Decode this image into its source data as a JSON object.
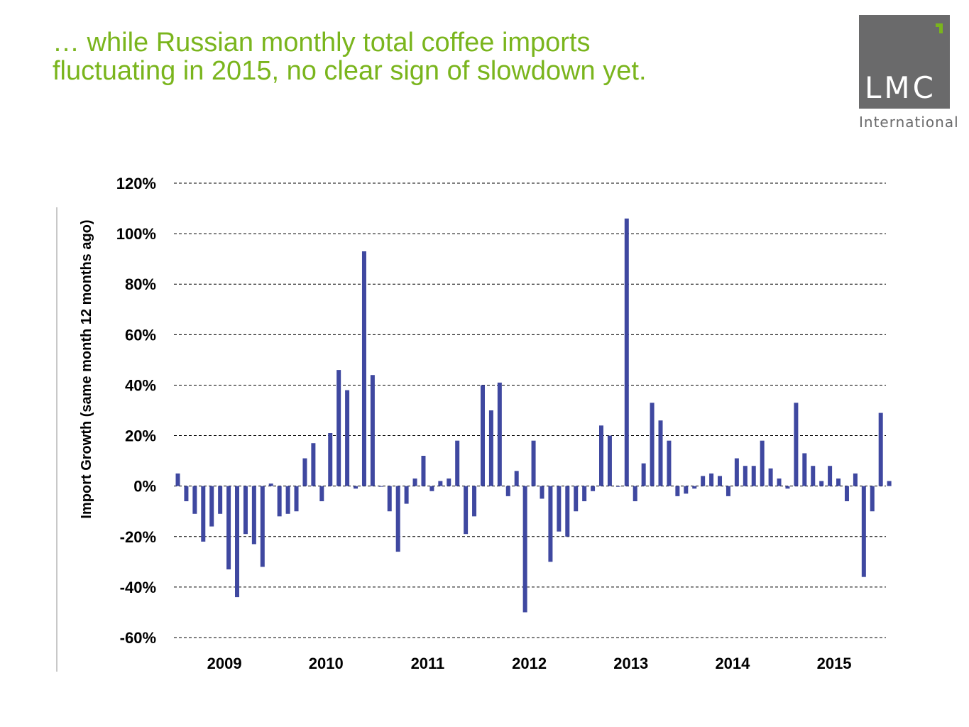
{
  "title": {
    "line1": "… while Russian monthly total coffee imports",
    "line2": "fluctuating in 2015, no clear sign of slowdown yet."
  },
  "logo": {
    "text": "LMC",
    "subtitle": "International",
    "bg_color": "#6a6a6b",
    "accent_color": "#7ab51d"
  },
  "chart_data": {
    "type": "bar",
    "ylabel": "Import Growth (same month 12 months ago)",
    "xlabel": "",
    "ylim": [
      -60,
      120
    ],
    "yticks": [
      120,
      100,
      80,
      60,
      40,
      20,
      0,
      -20,
      -40,
      -60
    ],
    "ytick_labels": [
      "120%",
      "100%",
      "80%",
      "60%",
      "40%",
      "20%",
      "0%",
      "-20%",
      "-40%",
      "-60%"
    ],
    "grid": true,
    "bar_color": "#3f48a0",
    "year_labels": [
      "2009",
      "2010",
      "2011",
      "2012",
      "2013",
      "2014",
      "2015"
    ],
    "months_per_year": 12,
    "values": [
      5,
      -6,
      -11,
      -22,
      -16,
      -11,
      -33,
      -44,
      -19,
      -23,
      -32,
      1,
      -12,
      -11,
      -10,
      11,
      17,
      -6,
      21,
      46,
      38,
      -1,
      93,
      44,
      0,
      -10,
      -26,
      -7,
      3,
      12,
      -2,
      2,
      3,
      18,
      -19,
      -12,
      40,
      30,
      41,
      -4,
      6,
      -50,
      18,
      -5,
      -30,
      -18,
      -20,
      -10,
      -6,
      -2,
      24,
      20,
      0,
      106,
      -6,
      9,
      33,
      26,
      18,
      -4,
      -3,
      -1,
      4,
      5,
      4,
      -4,
      11,
      8,
      8,
      18,
      7,
      3,
      -1,
      33,
      13,
      8,
      2,
      8,
      3,
      -6,
      5,
      -36,
      -10,
      29,
      2
    ]
  }
}
